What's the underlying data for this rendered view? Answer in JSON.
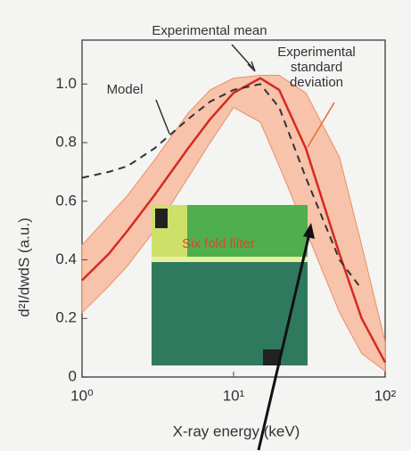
{
  "chart_data": {
    "type": "line",
    "x_label": "X-ray energy (keV)",
    "y_label": "d²I/dwdS (a.u.)",
    "xlog": true,
    "xlim": [
      1,
      100
    ],
    "ylim": [
      0,
      1.15
    ],
    "xticks": [
      {
        "value": 1,
        "label": "10⁰"
      },
      {
        "value": 10,
        "label": "10¹"
      },
      {
        "value": 100,
        "label": "10²"
      }
    ],
    "yticks": [
      0,
      0.2,
      0.4,
      0.6,
      0.8,
      {
        "value": 1,
        "label": "1.0"
      }
    ],
    "x": [
      1,
      1.5,
      2,
      3,
      5,
      7,
      10,
      15,
      20,
      30,
      50,
      70,
      100
    ],
    "band": {
      "name": "Experimental standard deviation",
      "color": "#f7c3aa",
      "upper": [
        0.45,
        0.55,
        0.62,
        0.74,
        0.9,
        0.98,
        1.02,
        1.03,
        1.03,
        0.97,
        0.75,
        0.45,
        0.12
      ],
      "lower": [
        0.22,
        0.31,
        0.38,
        0.5,
        0.68,
        0.8,
        0.92,
        0.87,
        0.72,
        0.5,
        0.22,
        0.08,
        0.02
      ]
    },
    "series": [
      {
        "name": "Experimental mean",
        "color": "#d42a22",
        "dashed": false,
        "values": [
          0.33,
          0.42,
          0.5,
          0.62,
          0.78,
          0.88,
          0.97,
          1.02,
          0.98,
          0.78,
          0.42,
          0.2,
          0.05
        ]
      },
      {
        "name": "Model",
        "color": "#333333",
        "dashed": true,
        "values": [
          0.68,
          0.7,
          0.72,
          0.78,
          0.88,
          0.94,
          0.98,
          1.0,
          0.92,
          0.68,
          0.4,
          0.3,
          null
        ]
      }
    ],
    "inset": {
      "label": "Six fold filter"
    }
  }
}
